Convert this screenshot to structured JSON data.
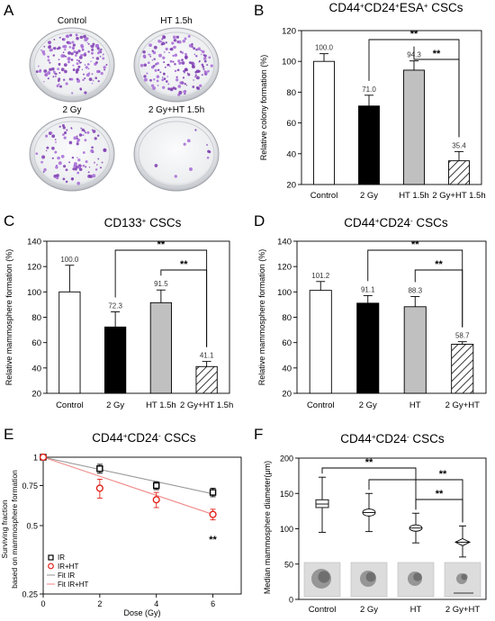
{
  "panel_letters": [
    "A",
    "B",
    "C",
    "D",
    "E",
    "F"
  ],
  "panelA": {
    "plates": [
      {
        "label": "Control",
        "density": 1.0
      },
      {
        "label": "HT 1.5h",
        "density": 0.95
      },
      {
        "label": "2 Gy",
        "density": 0.55
      },
      {
        "label": "2 Gy+HT 1.5h",
        "density": 0.06
      }
    ]
  },
  "colors": {
    "bar_white": "#ffffff",
    "bar_black": "#000000",
    "bar_gray": "#c0c0c0",
    "ir": "#000000",
    "ir_ht": "#e0231c",
    "fit_ir": "#9a9a9a",
    "fit_ir_ht": "#f08b8b"
  },
  "chart_data": [
    {
      "id": "B",
      "type": "bar",
      "title_parts": [
        "CD44",
        "+",
        "CD24",
        "+",
        "ESA",
        "+",
        " CSCs"
      ],
      "ylabel": "Relative colony formation (%)",
      "categories": [
        "Control",
        "2 Gy",
        "HT 1.5h",
        "2 Gy+HT 1.5h"
      ],
      "values": [
        100.0,
        71.0,
        94.3,
        35.4
      ],
      "value_labels": [
        "100.0",
        "71.0",
        "94.3",
        "35.4"
      ],
      "errors": [
        5,
        7,
        6,
        6
      ],
      "fills": [
        "white",
        "black",
        "gray",
        "hatch"
      ],
      "ylim": [
        20,
        120
      ],
      "yticks": [
        20,
        40,
        60,
        80,
        100,
        120
      ],
      "significance": [
        {
          "from": 1,
          "to": 3,
          "label": "**"
        },
        {
          "from": 2,
          "to": 3,
          "label": "**"
        }
      ]
    },
    {
      "id": "C",
      "type": "bar",
      "title_parts": [
        "CD133",
        "+",
        " CSCs"
      ],
      "ylabel": "Relative mammosphere formation (%)",
      "categories": [
        "Control",
        "2 Gy",
        "HT 1.5h",
        "2 Gy+HT 1.5h"
      ],
      "values": [
        100.0,
        72.3,
        91.5,
        41.1
      ],
      "value_labels": [
        "100.0",
        "72.3",
        "91.5",
        "41.1"
      ],
      "errors": [
        21,
        12,
        10,
        4
      ],
      "fills": [
        "white",
        "black",
        "gray",
        "hatch"
      ],
      "ylim": [
        20,
        140
      ],
      "yticks": [
        20,
        40,
        60,
        80,
        100,
        120,
        140
      ],
      "significance": [
        {
          "from": 1,
          "to": 3,
          "label": "**"
        },
        {
          "from": 2,
          "to": 3,
          "label": "**"
        }
      ]
    },
    {
      "id": "D",
      "type": "bar",
      "title_parts": [
        "CD44",
        "+",
        "CD24",
        "-",
        " CSCs"
      ],
      "ylabel": "Relative mammosphere formation (%)",
      "categories": [
        "Control",
        "2 Gy",
        "HT",
        "2 Gy+HT"
      ],
      "values": [
        101.2,
        91.1,
        88.3,
        58.7
      ],
      "value_labels": [
        "101.2",
        "91.1",
        "88.3",
        "58.7"
      ],
      "errors": [
        7,
        6,
        8,
        2
      ],
      "fills": [
        "white",
        "black",
        "gray",
        "hatch"
      ],
      "ylim": [
        20,
        140
      ],
      "yticks": [
        20,
        40,
        60,
        80,
        100,
        120,
        140
      ],
      "significance": [
        {
          "from": 1,
          "to": 3,
          "label": "**"
        },
        {
          "from": 2,
          "to": 3,
          "label": "**"
        }
      ]
    },
    {
      "id": "E",
      "type": "scatter",
      "title_parts": [
        "CD44",
        "+",
        "CD24",
        "-",
        " CSCs"
      ],
      "xlabel": "Dose (Gy)",
      "ylabel_lines": [
        "Surviving fraction",
        "based on mammosphere formation"
      ],
      "x": [
        0,
        2,
        4,
        6
      ],
      "xlim": [
        0,
        7
      ],
      "xticks": [
        0,
        2,
        4,
        6
      ],
      "ylim": [
        0.25,
        1.0
      ],
      "yscale": "log",
      "yticks": [
        0.25,
        0.5,
        0.75,
        1
      ],
      "ytick_labels": [
        "0.25",
        "0.5",
        "0.75",
        "1"
      ],
      "series": [
        {
          "name": "IR",
          "values": [
            1.0,
            0.89,
            0.75,
            0.7
          ],
          "errors": [
            0,
            0.04,
            0.03,
            0.03
          ],
          "marker": "square"
        },
        {
          "name": "IR+HT",
          "values": [
            1.0,
            0.73,
            0.65,
            0.56
          ],
          "errors": [
            0,
            0.07,
            0.05,
            0.03
          ],
          "marker": "circle"
        }
      ],
      "fits": [
        {
          "name": "Fit IR",
          "end": 0.69
        },
        {
          "name": "Fit IR+HT",
          "end": 0.56
        }
      ],
      "annotation": "**"
    },
    {
      "id": "F",
      "type": "box",
      "title_parts": [
        "CD44",
        "+",
        "CD24",
        "-",
        " CSCs"
      ],
      "ylabel": "Median mammosphere diameter(μm)",
      "categories": [
        "Control",
        "2 Gy",
        "HT",
        "2 Gy+HT"
      ],
      "boxes": [
        {
          "min": 95,
          "q1": 130,
          "median": 135,
          "q3": 141,
          "max": 173
        },
        {
          "min": 96,
          "q1": 118,
          "median": 123,
          "q3": 128,
          "max": 150
        },
        {
          "min": 80,
          "q1": 97,
          "median": 101,
          "q3": 106,
          "max": 122
        },
        {
          "min": 60,
          "q1": 76,
          "median": 81,
          "q3": 86,
          "max": 104
        }
      ],
      "ylim": [
        0,
        200
      ],
      "yticks": [
        0,
        50,
        100,
        150,
        200
      ],
      "significance": [
        {
          "from": 0,
          "to": 2,
          "label": "**"
        },
        {
          "from": 1,
          "to": 3,
          "label": "**"
        },
        {
          "from": 2,
          "to": 3,
          "label": "**"
        }
      ]
    }
  ]
}
